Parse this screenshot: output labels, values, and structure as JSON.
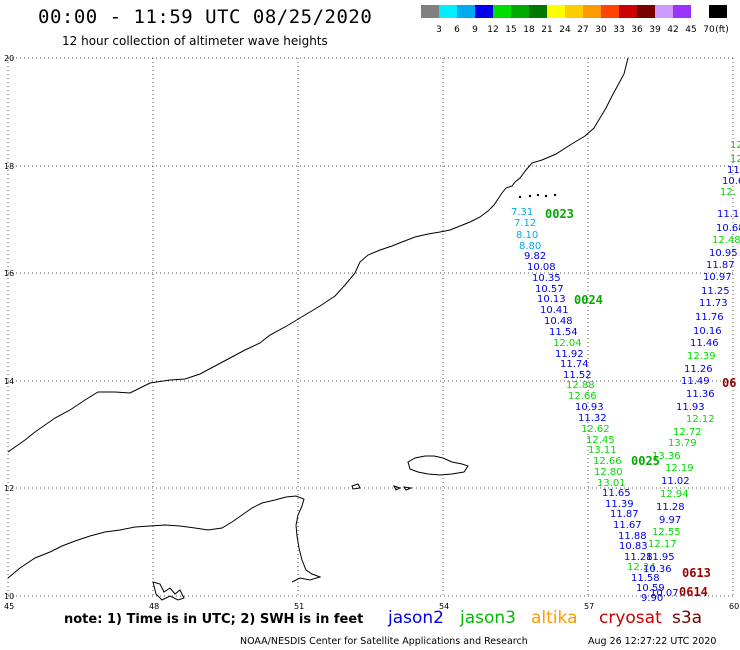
{
  "header": {
    "title": "00:00 - 11:59 UTC 08/25/2020",
    "subtitle": "12 hour collection of altimeter wave heights"
  },
  "legend": {
    "unit": "(ft)",
    "colors": [
      "#808080",
      "#00eeff",
      "#00aaee",
      "#0000ee",
      "#00dd00",
      "#00aa00",
      "#007700",
      "#ffff00",
      "#ffcc00",
      "#ff9900",
      "#ff4400",
      "#cc0000",
      "#770000",
      "#cc99ff",
      "#9933ff",
      "#ffffff",
      "#000000"
    ],
    "labels": [
      "3",
      "6",
      "9",
      "12",
      "15",
      "18",
      "21",
      "24",
      "27",
      "30",
      "33",
      "36",
      "39",
      "42",
      "45",
      "70"
    ]
  },
  "map": {
    "lon_ticks": [
      "45",
      "48",
      "51",
      "54",
      "57",
      "60"
    ],
    "lat_ticks": [
      "20",
      "18",
      "16",
      "14",
      "12",
      "10"
    ]
  },
  "tracks": [
    {
      "sat": "jason2",
      "color": "#0000ee",
      "values": [
        "7.31",
        "7.12",
        "8.10",
        "8.80",
        "9.82",
        "10.08",
        "10.35",
        "10.57",
        "10.13",
        "10.41",
        "10.48",
        "11.54",
        "12.04",
        "11.92",
        "11.74",
        "11.52",
        "12.88",
        "12.66",
        "10.93",
        "11.32",
        "12.62",
        "12.45",
        "13.11",
        "12.66",
        "12.80",
        "13.01",
        "11.65",
        "11.39",
        "11.87",
        "11.67",
        "11.88",
        "10.83",
        "11.28",
        "12.24",
        "11.58",
        "10.59",
        "9.90"
      ],
      "colors": [
        "#00aaee",
        "#00aaee",
        "#00aaee",
        "#00aaee",
        "#0000ee",
        "#0000ee",
        "#0000ee",
        "#0000ee",
        "#0000ee",
        "#0000ee",
        "#0000ee",
        "#0000ee",
        "#00dd00",
        "#0000ee",
        "#0000ee",
        "#0000ee",
        "#00dd00",
        "#00dd00",
        "#0000ee",
        "#0000ee",
        "#00dd00",
        "#00dd00",
        "#00dd00",
        "#00dd00",
        "#00dd00",
        "#00dd00",
        "#0000ee",
        "#0000ee",
        "#0000ee",
        "#0000ee",
        "#0000ee",
        "#0000ee",
        "#0000ee",
        "#00dd00",
        "#0000ee",
        "#0000ee",
        "#0000ee"
      ]
    },
    {
      "sat": "jason3",
      "color": "#00aa00",
      "values": [
        "12",
        "12",
        "11",
        "10.6",
        "12.",
        "11.1",
        "10.68",
        "12.48",
        "10.95",
        "11.87",
        "10.97",
        "11.25",
        "11.73",
        "11.76",
        "10.16",
        "11.46",
        "12.39",
        "11.26",
        "11.49",
        "11.36",
        "11.93",
        "12.12",
        "12.72",
        "13.79",
        "13.36",
        "12.19",
        "11.02",
        "12.94",
        "11.28",
        "9.97",
        "12.55",
        "12.17",
        "11.95",
        "10.36",
        "10.07"
      ],
      "colors": [
        "#00dd00",
        "#00dd00",
        "#0000ee",
        "#0000ee",
        "#00dd00",
        "#0000ee",
        "#0000ee",
        "#00dd00",
        "#0000ee",
        "#0000ee",
        "#0000ee",
        "#0000ee",
        "#0000ee",
        "#0000ee",
        "#0000ee",
        "#0000ee",
        "#00dd00",
        "#0000ee",
        "#0000ee",
        "#0000ee",
        "#0000ee",
        "#00dd00",
        "#00dd00",
        "#00dd00",
        "#00dd00",
        "#00dd00",
        "#0000ee",
        "#00dd00",
        "#0000ee",
        "#0000ee",
        "#00dd00",
        "#00dd00",
        "#0000ee",
        "#0000ee",
        "#0000ee"
      ]
    }
  ],
  "time_labels": [
    {
      "text": "0023",
      "color": "#00aa00"
    },
    {
      "text": "0024",
      "color": "#00aa00"
    },
    {
      "text": "0025",
      "color": "#00aa00"
    },
    {
      "text": "06",
      "color": "#990000"
    },
    {
      "text": "0613",
      "color": "#990000"
    },
    {
      "text": "0614",
      "color": "#990000"
    }
  ],
  "footer": {
    "note": "note: 1) Time is in UTC; 2) SWH is in feet",
    "satellites": [
      {
        "name": "jason2",
        "color": "#0000ee"
      },
      {
        "name": "jason3",
        "color": "#00bb00"
      },
      {
        "name": "altika",
        "color": "#ff9900"
      },
      {
        "name": "cryosat",
        "color": "#cc0000"
      },
      {
        "name": "s3a",
        "color": "#770000"
      }
    ],
    "credit": "NOAA/NESDIS Center for Satellite Applications and Research",
    "timestamp": "Aug 26 12:27:22 UTC 2020"
  }
}
